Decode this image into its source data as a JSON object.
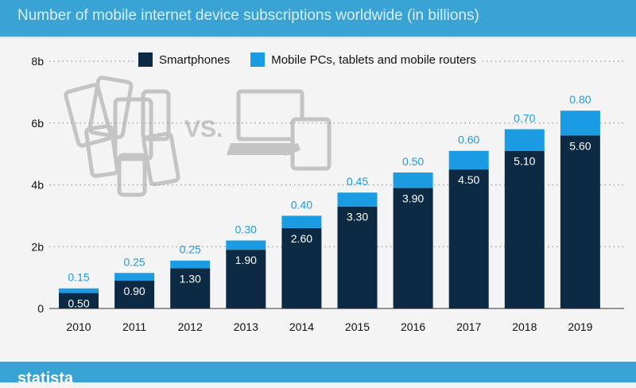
{
  "header": {
    "subtitle": "Number of mobile internet device subscriptions worldwide (in billions)"
  },
  "footer": {
    "brand": "statista"
  },
  "illustration": {
    "vs_text": "VS."
  },
  "colors": {
    "smartphones": "#0d2a44",
    "other": "#1b9ce2",
    "header": "#3aa3d6"
  },
  "chart_data": {
    "type": "bar",
    "stacked": true,
    "title": "Number of mobile internet device subscriptions worldwide (in billions)",
    "categories": [
      "2010",
      "2011",
      "2012",
      "2013",
      "2014",
      "2015",
      "2016",
      "2017",
      "2018",
      "2019"
    ],
    "series": [
      {
        "name": "Smartphones",
        "values": [
          0.5,
          0.9,
          1.3,
          1.9,
          2.6,
          3.3,
          3.9,
          4.5,
          5.1,
          5.6
        ],
        "labels": [
          "0.50",
          "0.90",
          "1.30",
          "1.90",
          "2.60",
          "3.30",
          "3.90",
          "4.50",
          "5.10",
          "5.60"
        ]
      },
      {
        "name": "Mobile PCs, tablets and mobile routers",
        "values": [
          0.15,
          0.25,
          0.25,
          0.3,
          0.4,
          0.45,
          0.5,
          0.6,
          0.7,
          0.8
        ],
        "labels": [
          "0.15",
          "0.25",
          "0.25",
          "0.30",
          "0.40",
          "0.45",
          "0.50",
          "0.60",
          "0.70",
          "0.80"
        ]
      }
    ],
    "yticks": [
      0,
      2,
      4,
      6,
      8
    ],
    "ytick_labels": [
      "0",
      "2b",
      "4b",
      "6b",
      "8b"
    ],
    "ylim": [
      0,
      8
    ],
    "grid": true,
    "legend_position": "top"
  }
}
